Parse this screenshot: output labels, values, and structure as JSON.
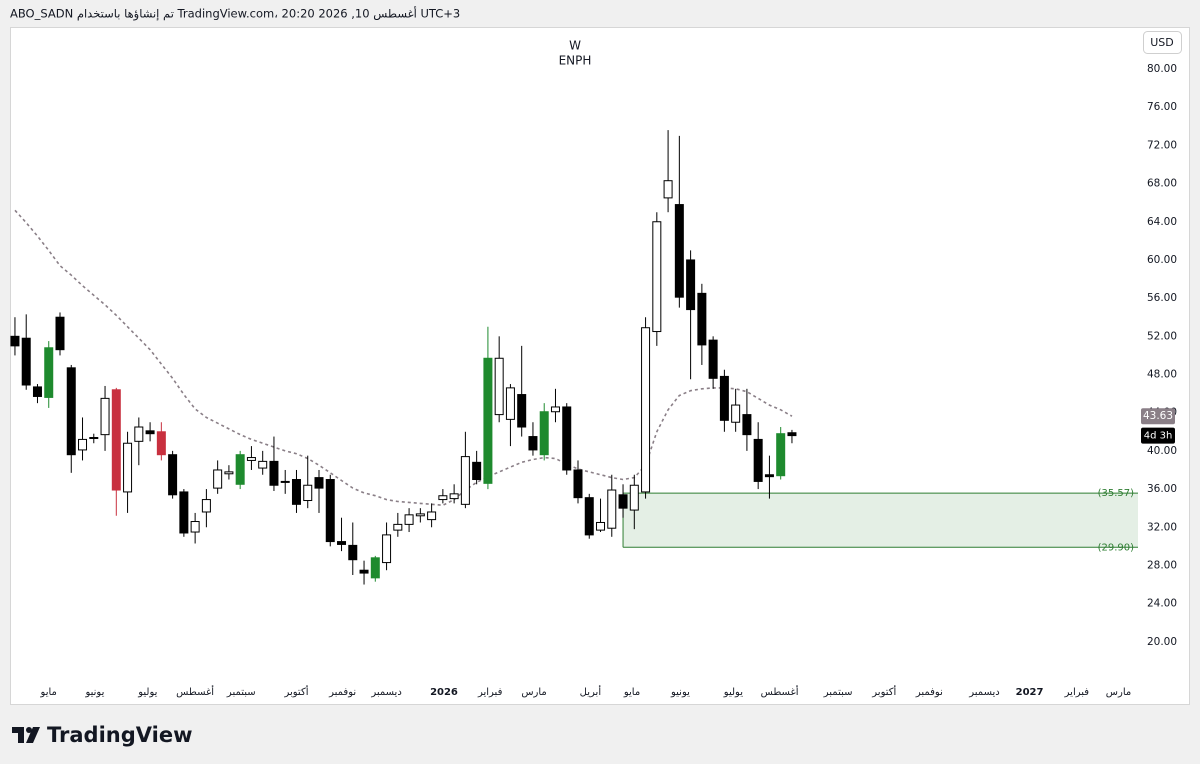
{
  "header": "ABO_SADN تم إنشاؤها باستخدام TradingView.com، 20:20 2026 ,10 أغسطس UTC+3",
  "footer": "TradingView",
  "chart_data": {
    "type": "candlestick",
    "interval": "W",
    "title": "ENPH",
    "currency": "USD",
    "countdown": "4d 3h",
    "open": [
      52,
      51.8,
      46.7,
      45.6,
      54,
      48.7,
      40.1,
      41.3,
      41.7,
      46.4,
      35.7,
      41,
      42.1,
      42,
      39.6,
      35.7,
      31.5,
      33.6,
      36.1,
      37.6,
      36.5,
      39,
      38.2,
      38.9,
      36.8,
      37,
      34.8,
      37.2,
      37,
      30.5,
      30.1,
      27.5,
      26.7,
      28.3,
      31.7,
      32.3,
      33.2,
      32.8,
      34.9,
      35,
      34.4,
      38.8,
      36.6,
      43.8,
      43.3,
      45.9,
      41.5,
      39.6,
      44.1,
      44.6,
      38,
      35.1,
      31.7,
      31.9,
      35.4,
      33.8,
      35.7,
      52.5,
      66.5,
      65.8,
      60,
      56.5,
      51.6,
      47.8,
      43,
      43.8,
      41.2,
      37.5,
      37.4,
      41.9
    ],
    "high": [
      54,
      54.3,
      47,
      51.5,
      54.5,
      49,
      43.5,
      41.8,
      46.8,
      46.6,
      42,
      43.5,
      43,
      43,
      40,
      36,
      33.5,
      36,
      39,
      38.5,
      40,
      40.5,
      40,
      41.5,
      38,
      38,
      39.5,
      38,
      37.5,
      33,
      32.5,
      28.5,
      29,
      32.5,
      33.5,
      34,
      34,
      34.5,
      36,
      36.5,
      42,
      40,
      53,
      52,
      47,
      51,
      43,
      45,
      46.5,
      45,
      39,
      35.5,
      35,
      37.5,
      36.5,
      37.5,
      54,
      65,
      73.6,
      73,
      61,
      57.5,
      52,
      48.5,
      46.5,
      46.5,
      43,
      39.5,
      42.5,
      42.2
    ],
    "low": [
      50,
      46.4,
      45,
      44.5,
      50,
      37.7,
      39,
      40.8,
      40,
      33.2,
      33.5,
      38.5,
      41,
      39,
      35,
      31,
      30.3,
      32,
      35.5,
      37,
      36,
      38,
      37.5,
      35.8,
      35.5,
      33.5,
      34,
      33.5,
      30,
      29.5,
      27,
      26,
      26.3,
      27.5,
      31,
      31.5,
      32.5,
      32,
      34.5,
      34.5,
      34,
      36.5,
      36,
      43,
      40.5,
      41.5,
      39.5,
      39,
      43,
      37.5,
      34.5,
      30.8,
      31.5,
      31,
      33,
      31.8,
      35,
      51,
      65,
      55,
      47.5,
      49,
      46.5,
      42,
      42,
      40,
      36,
      35,
      37,
      40.8
    ],
    "close": [
      51,
      46.9,
      45.7,
      50.8,
      50.6,
      39.6,
      41.2,
      41.4,
      45.5,
      35.9,
      40.8,
      42.5,
      41.8,
      39.6,
      35.4,
      31.4,
      32.6,
      34.9,
      38,
      37.8,
      39.6,
      39.3,
      38.9,
      36.4,
      36.7,
      34.4,
      36.4,
      36.1,
      30.5,
      30.2,
      28.6,
      27.2,
      28.8,
      31.2,
      32.3,
      33.3,
      33.4,
      33.6,
      35.3,
      35.5,
      39.4,
      37,
      49.7,
      49.7,
      46.6,
      42.5,
      40.1,
      44.1,
      44.6,
      38,
      35.1,
      31.2,
      32.5,
      35.9,
      34,
      36.4,
      52.9,
      64,
      68.3,
      56.1,
      54.8,
      51.1,
      47.6,
      43.2,
      44.8,
      41.7,
      36.8,
      37.3,
      41.8,
      41.6
    ],
    "colors": [
      "#000000",
      "#000000",
      "#000000",
      "#1e8a2e",
      "#000000",
      "#000000",
      "#ffffff",
      "#ffffff",
      "#ffffff",
      "#c8303f",
      "#ffffff",
      "#ffffff",
      "#000000",
      "#c8303f",
      "#000000",
      "#000000",
      "#ffffff",
      "#ffffff",
      "#ffffff",
      "#ffffff",
      "#1e8a2e",
      "#ffffff",
      "#ffffff",
      "#000000",
      "#000000",
      "#000000",
      "#ffffff",
      "#000000",
      "#000000",
      "#000000",
      "#000000",
      "#000000",
      "#1e8a2e",
      "#ffffff",
      "#ffffff",
      "#ffffff",
      "#ffffff",
      "#ffffff",
      "#ffffff",
      "#ffffff",
      "#ffffff",
      "#000000",
      "#1e8a2e",
      "#ffffff",
      "#ffffff",
      "#000000",
      "#000000",
      "#1e8a2e",
      "#ffffff",
      "#000000",
      "#000000",
      "#000000",
      "#ffffff",
      "#ffffff",
      "#000000",
      "#ffffff",
      "#ffffff",
      "#ffffff",
      "#ffffff",
      "#000000",
      "#000000",
      "#000000",
      "#000000",
      "#000000",
      "#ffffff",
      "#000000",
      "#000000",
      "#000000",
      "#1e8a2e",
      "#000000"
    ],
    "ma": {
      "color": "#8a7f87",
      "values": [
        65.2,
        63.9,
        62.5,
        61,
        59.4,
        58.4,
        57.3,
        56.3,
        55.3,
        54.2,
        53,
        51.8,
        50.6,
        49.1,
        47.6,
        45.9,
        44.4,
        43.5,
        42.9,
        42.3,
        41.7,
        41.2,
        40.8,
        40.4,
        40,
        39.7,
        39.2,
        38.5,
        37.7,
        36.9,
        36.1,
        35.6,
        35.3,
        34.9,
        34.7,
        34.6,
        34.5,
        34.4,
        34.3,
        34.9,
        35.9,
        36.7,
        37.3,
        37.8,
        38.3,
        38.8,
        39.1,
        39.3,
        39.2,
        38.6,
        38.1,
        37.8,
        37.5,
        37.2,
        37,
        37.2,
        38.5,
        42,
        44.3,
        45.8,
        46.3,
        46.5,
        46.6,
        46.6,
        46.5,
        46.2,
        45.5,
        44.8,
        44.3,
        43.63
      ]
    },
    "zone": {
      "top": 35.57,
      "bottom": 29.9,
      "start": 54,
      "top_label": "(35.57)",
      "bottom_label": "(29.90)",
      "color": "#2e7d32",
      "fill": "#e4efe5"
    },
    "xlim": [
      -0.44,
      99.73
    ],
    "ylim": [
      16,
      84.4
    ],
    "yticks": [
      {
        "value": 20,
        "label": "20.00"
      },
      {
        "value": 24,
        "label": "24.00"
      },
      {
        "value": 28,
        "label": "28.00"
      },
      {
        "value": 32,
        "label": "32.00"
      },
      {
        "value": 36,
        "label": "36.00"
      },
      {
        "value": 40,
        "label": "40.00"
      },
      {
        "value": 44,
        "label": "44.00"
      },
      {
        "value": 48,
        "label": "48.00"
      },
      {
        "value": 52,
        "label": "52.00"
      },
      {
        "value": 56,
        "label": "56.00"
      },
      {
        "value": 60,
        "label": "60.00"
      },
      {
        "value": 64,
        "label": "64.00"
      },
      {
        "value": 68,
        "label": "68.00"
      },
      {
        "value": 72,
        "label": "72.00"
      },
      {
        "value": 76,
        "label": "76.00"
      },
      {
        "value": 80,
        "label": "80.00"
      }
    ],
    "xticks": [
      {
        "value": 3,
        "label": "مايو"
      },
      {
        "value": 7.1,
        "label": "يونيو"
      },
      {
        "value": 11.8,
        "label": "يوليو"
      },
      {
        "value": 16,
        "label": "أغسطس"
      },
      {
        "value": 20.1,
        "label": "سبتمبر"
      },
      {
        "value": 25,
        "label": "أكتوبر"
      },
      {
        "value": 29.1,
        "label": "نوفمبر"
      },
      {
        "value": 33,
        "label": "ديسمبر"
      },
      {
        "value": 38.1,
        "label": "2026"
      },
      {
        "value": 42.2,
        "label": "فبراير"
      },
      {
        "value": 46.1,
        "label": "مارس"
      },
      {
        "value": 51.1,
        "label": "أبريل"
      },
      {
        "value": 54.8,
        "label": "مايو"
      },
      {
        "value": 59.1,
        "label": "يونيو"
      },
      {
        "value": 63.8,
        "label": "يوليو"
      },
      {
        "value": 67.9,
        "label": "أغسطس"
      },
      {
        "value": 73.1,
        "label": "سبتمبر"
      },
      {
        "value": 77.2,
        "label": "أكتوبر"
      },
      {
        "value": 81.2,
        "label": "نوفمبر"
      },
      {
        "value": 86.1,
        "label": "ديسمبر"
      },
      {
        "value": 90.1,
        "label": "2027"
      },
      {
        "value": 94.3,
        "label": "فبراير"
      },
      {
        "value": 98,
        "label": "مارس"
      }
    ],
    "grid": false
  }
}
